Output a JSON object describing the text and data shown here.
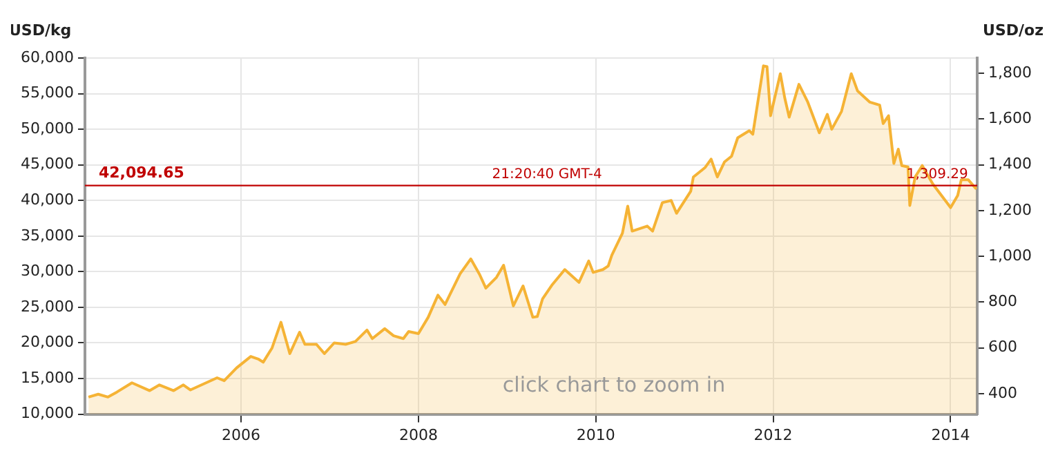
{
  "chart_data": {
    "type": "area",
    "ylabel": "USD/kg",
    "y2label": "USD/oz",
    "x": [
      2004.28,
      2004.39,
      2004.5,
      2004.6,
      2004.77,
      2004.97,
      2005.08,
      2005.24,
      2005.35,
      2005.43,
      2005.73,
      2005.81,
      2005.95,
      2006.11,
      2006.2,
      2006.25,
      2006.35,
      2006.45,
      2006.55,
      2006.66,
      2006.72,
      2006.85,
      2006.94,
      2007.05,
      2007.18,
      2007.29,
      2007.42,
      2007.48,
      2007.62,
      2007.72,
      2007.83,
      2007.89,
      2008.0,
      2008.11,
      2008.22,
      2008.3,
      2008.47,
      2008.59,
      2008.69,
      2008.76,
      2008.88,
      2008.96,
      2009.07,
      2009.18,
      2009.29,
      2009.34,
      2009.4,
      2009.51,
      2009.65,
      2009.81,
      2009.92,
      2009.97,
      2010.08,
      2010.14,
      2010.18,
      2010.3,
      2010.36,
      2010.41,
      2010.58,
      2010.64,
      2010.75,
      2010.85,
      2010.91,
      2011.07,
      2011.1,
      2011.23,
      2011.3,
      2011.37,
      2011.45,
      2011.53,
      2011.6,
      2011.73,
      2011.77,
      2011.89,
      2011.93,
      2011.97,
      2012.08,
      2012.13,
      2012.18,
      2012.29,
      2012.39,
      2012.52,
      2012.61,
      2012.66,
      2012.77,
      2012.88,
      2012.95,
      2013.09,
      2013.2,
      2013.24,
      2013.3,
      2013.36,
      2013.41,
      2013.45,
      2013.52,
      2013.54,
      2013.6,
      2013.68,
      2013.8,
      2014.0,
      2014.08,
      2014.12,
      2014.2,
      2014.29
    ],
    "series": [
      {
        "color": "#f5b335",
        "values": [
          12400,
          12800,
          12400,
          13100,
          14400,
          13300,
          14100,
          13300,
          14100,
          13400,
          15100,
          14700,
          16500,
          18100,
          17700,
          17300,
          19300,
          22900,
          18500,
          21500,
          19800,
          19800,
          18500,
          20000,
          19800,
          20200,
          21800,
          20600,
          22000,
          21000,
          20600,
          21600,
          21300,
          23600,
          26700,
          25400,
          29700,
          31800,
          29600,
          27700,
          29200,
          30900,
          25200,
          28000,
          23600,
          23700,
          26200,
          28200,
          30300,
          28500,
          31500,
          29900,
          30300,
          30800,
          32300,
          35400,
          39200,
          35700,
          36400,
          35700,
          39700,
          40000,
          38200,
          41300,
          43300,
          44600,
          45800,
          43300,
          45400,
          46200,
          48800,
          49800,
          49300,
          58900,
          58800,
          51900,
          57800,
          54400,
          51700,
          56300,
          53800,
          49500,
          52100,
          50000,
          52500,
          57800,
          55400,
          53800,
          53400,
          50800,
          51900,
          45200,
          47200,
          44900,
          44700,
          39300,
          43300,
          44900,
          42300,
          39000,
          40700,
          42900,
          42900,
          41600
        ]
      }
    ],
    "xlim": [
      2004.24,
      2014.3
    ],
    "xticks": [
      2006,
      2008,
      2010,
      2012,
      2014
    ],
    "ylim": [
      10000,
      60000
    ],
    "yticks": [
      {
        "value": 10000,
        "label": "10,000"
      },
      {
        "value": 15000,
        "label": "15,000"
      },
      {
        "value": 20000,
        "label": "20,000"
      },
      {
        "value": 25000,
        "label": "25,000"
      },
      {
        "value": 30000,
        "label": "30,000"
      },
      {
        "value": 35000,
        "label": "35,000"
      },
      {
        "value": 40000,
        "label": "40,000"
      },
      {
        "value": 45000,
        "label": "45,000"
      },
      {
        "value": 50000,
        "label": "50,000"
      },
      {
        "value": 55000,
        "label": "55,000"
      },
      {
        "value": 60000,
        "label": "60,000"
      }
    ],
    "y2lim": [
      311,
      1866
    ],
    "y2ticks": [
      400,
      600,
      800,
      {
        "value": 1000,
        "label": "1,000"
      },
      {
        "value": 1200,
        "label": "1,200"
      },
      {
        "value": 1400,
        "label": "1,400"
      },
      {
        "value": 1600,
        "label": "1,600"
      },
      {
        "value": 1800,
        "label": "1,800"
      }
    ],
    "grid": true,
    "legend": false,
    "marker": "none",
    "ref_lines": [
      {
        "axis": "y",
        "value": 42094.65,
        "label": "42,094.65",
        "color": "#c00000"
      }
    ],
    "annotations": [
      {
        "text": "21:20:40 GMT-4",
        "x": 2009.45,
        "y": 42094.65
      },
      {
        "text": "1,309.29",
        "x": 2013.85,
        "y": 42094.65
      },
      "click chart to zoom in"
    ]
  }
}
